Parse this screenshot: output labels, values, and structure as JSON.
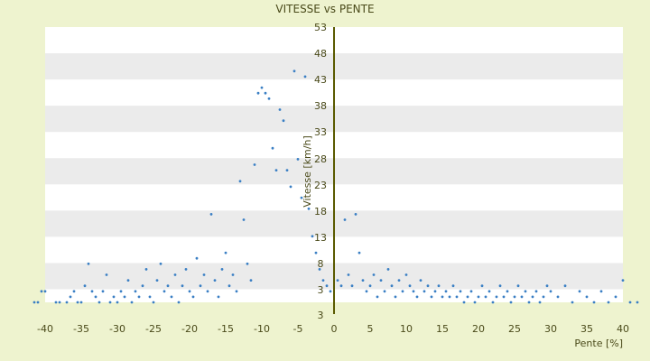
{
  "chart_data": {
    "type": "scatter",
    "title": "VITESSE vs PENTE",
    "xlabel": "Pente [%]",
    "ylabel": "Vitesse [km/h]",
    "xlim": [
      -40,
      40
    ],
    "ylim": [
      3,
      53
    ],
    "x_ticks": [
      "-40",
      "-35",
      "-30",
      "-25",
      "-20",
      "-15",
      "-10",
      "-5",
      "0",
      "5",
      "10",
      "15",
      "20",
      "25",
      "30",
      "35",
      "40"
    ],
    "y_ticks": [
      "3",
      "3",
      "8",
      "13",
      "18",
      "23",
      "28",
      "33",
      "38",
      "43",
      "48",
      "53"
    ],
    "grid": "horizontal alternating bands",
    "legend": "none",
    "colors": {
      "points": "#3a7fc4",
      "axis": "#5a5a00",
      "band": "#ebebeb",
      "plot_bg": "#ffffff"
    },
    "series": [
      {
        "points": [
          [
            -41.5,
            3
          ],
          [
            -41,
            3
          ],
          [
            -40.5,
            5
          ],
          [
            -40,
            5
          ],
          [
            -38.5,
            3
          ],
          [
            -38,
            3
          ],
          [
            -37,
            3
          ],
          [
            -36.5,
            4
          ],
          [
            -36,
            5
          ],
          [
            -35.5,
            3
          ],
          [
            -35,
            3
          ],
          [
            -34.5,
            6
          ],
          [
            -34,
            10
          ],
          [
            -33.5,
            5
          ],
          [
            -33,
            4
          ],
          [
            -32.5,
            3
          ],
          [
            -32,
            5
          ],
          [
            -31.5,
            8
          ],
          [
            -31,
            3
          ],
          [
            -30.5,
            4
          ],
          [
            -30,
            3
          ],
          [
            -29.5,
            5
          ],
          [
            -29,
            4
          ],
          [
            -28.5,
            7
          ],
          [
            -28,
            3
          ],
          [
            -27.5,
            5
          ],
          [
            -27,
            4
          ],
          [
            -26.5,
            6
          ],
          [
            -26,
            9
          ],
          [
            -25.5,
            4
          ],
          [
            -25,
            3
          ],
          [
            -24.5,
            7
          ],
          [
            -24,
            10
          ],
          [
            -23.5,
            5
          ],
          [
            -23,
            6
          ],
          [
            -22.5,
            4
          ],
          [
            -22,
            8
          ],
          [
            -21.5,
            3
          ],
          [
            -21,
            6
          ],
          [
            -20.5,
            9
          ],
          [
            -20,
            5
          ],
          [
            -19.5,
            4
          ],
          [
            -19,
            11
          ],
          [
            -18.5,
            6
          ],
          [
            -18,
            8
          ],
          [
            -17.5,
            5
          ],
          [
            -17,
            19
          ],
          [
            -16.5,
            7
          ],
          [
            -16,
            4
          ],
          [
            -15.5,
            9
          ],
          [
            -15,
            12
          ],
          [
            -14.5,
            6
          ],
          [
            -14,
            8
          ],
          [
            -13.5,
            5
          ],
          [
            -13,
            25
          ],
          [
            -12.5,
            18
          ],
          [
            -12,
            10
          ],
          [
            -11.5,
            7
          ],
          [
            -11,
            28
          ],
          [
            -10.5,
            41
          ],
          [
            -10,
            42
          ],
          [
            -9.5,
            41
          ],
          [
            -9,
            40
          ],
          [
            -8.5,
            31
          ],
          [
            -8,
            27
          ],
          [
            -7.5,
            38
          ],
          [
            -7,
            36
          ],
          [
            -6.5,
            27
          ],
          [
            -6,
            24
          ],
          [
            -5.5,
            45
          ],
          [
            -5,
            29
          ],
          [
            -4.5,
            22
          ],
          [
            -4,
            44
          ],
          [
            -3.5,
            20
          ],
          [
            -3,
            15
          ],
          [
            -2.5,
            12
          ],
          [
            -2,
            9
          ],
          [
            -1.5,
            7
          ],
          [
            -1,
            6
          ],
          [
            -0.5,
            5
          ],
          [
            0.5,
            7
          ],
          [
            1,
            6
          ],
          [
            1.5,
            18
          ],
          [
            2,
            8
          ],
          [
            2.5,
            6
          ],
          [
            3,
            19
          ],
          [
            3.5,
            12
          ],
          [
            4,
            7
          ],
          [
            4.5,
            5
          ],
          [
            5,
            6
          ],
          [
            5.5,
            8
          ],
          [
            6,
            4
          ],
          [
            6.5,
            7
          ],
          [
            7,
            5
          ],
          [
            7.5,
            9
          ],
          [
            8,
            6
          ],
          [
            8.5,
            4
          ],
          [
            9,
            7
          ],
          [
            9.5,
            5
          ],
          [
            10,
            8
          ],
          [
            10.5,
            6
          ],
          [
            11,
            5
          ],
          [
            11.5,
            4
          ],
          [
            12,
            7
          ],
          [
            12.5,
            5
          ],
          [
            13,
            6
          ],
          [
            13.5,
            4
          ],
          [
            14,
            5
          ],
          [
            14.5,
            6
          ],
          [
            15,
            4
          ],
          [
            15.5,
            5
          ],
          [
            16,
            4
          ],
          [
            16.5,
            6
          ],
          [
            17,
            4
          ],
          [
            17.5,
            5
          ],
          [
            18,
            3
          ],
          [
            18.5,
            4
          ],
          [
            19,
            5
          ],
          [
            19.5,
            3
          ],
          [
            20,
            4
          ],
          [
            20.5,
            6
          ],
          [
            21,
            4
          ],
          [
            21.5,
            5
          ],
          [
            22,
            3
          ],
          [
            22.5,
            4
          ],
          [
            23,
            6
          ],
          [
            23.5,
            4
          ],
          [
            24,
            5
          ],
          [
            24.5,
            3
          ],
          [
            25,
            4
          ],
          [
            25.5,
            6
          ],
          [
            26,
            4
          ],
          [
            26.5,
            5
          ],
          [
            27,
            3
          ],
          [
            27.5,
            4
          ],
          [
            28,
            5
          ],
          [
            28.5,
            3
          ],
          [
            29,
            4
          ],
          [
            29.5,
            6
          ],
          [
            30,
            5
          ],
          [
            31,
            4
          ],
          [
            32,
            6
          ],
          [
            33,
            3
          ],
          [
            34,
            5
          ],
          [
            35,
            4
          ],
          [
            36,
            3
          ],
          [
            37,
            5
          ],
          [
            38,
            3
          ],
          [
            39,
            4
          ],
          [
            40,
            7
          ],
          [
            41,
            3
          ],
          [
            42,
            3
          ]
        ]
      }
    ]
  }
}
